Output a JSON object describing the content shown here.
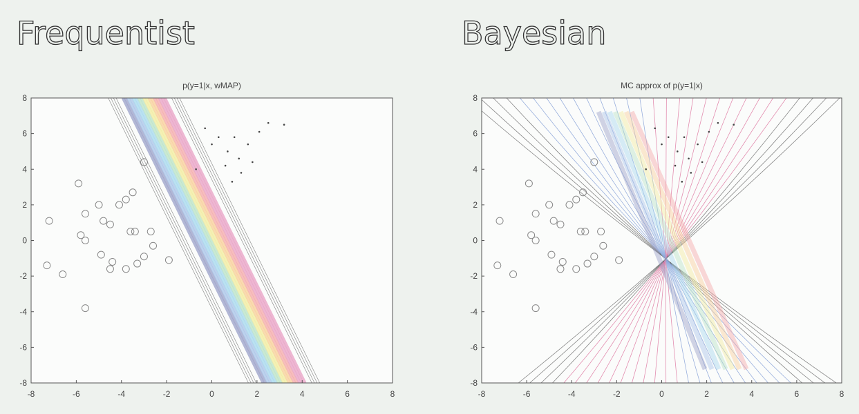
{
  "headings": [
    "Frequentist",
    "Bayesian"
  ],
  "chart_data": [
    {
      "type": "scatter",
      "title": "p(y=1|x, wMAP)",
      "contour": "band",
      "xlim": [
        -8,
        8
      ],
      "ylim": [
        -8,
        8
      ],
      "xticks": [
        -8,
        -6,
        -4,
        -2,
        0,
        2,
        4,
        6,
        8
      ],
      "yticks": [
        -8,
        -6,
        -4,
        -2,
        0,
        2,
        4,
        6,
        8
      ],
      "series": [
        {
          "marker": "circle",
          "color": "#888888",
          "x": [
            -5.9,
            -7.2,
            -5.6,
            -5.8,
            -5.6,
            -5.0,
            -4.8,
            -4.5,
            -4.1,
            -3.8,
            -3.5,
            -3.6,
            -3.4,
            -2.7,
            -3.0,
            -7.3,
            -6.6,
            -4.9,
            -4.5,
            -4.4,
            -3.8,
            -3.3,
            -3.0,
            -2.6,
            -1.9,
            -5.6
          ],
          "y": [
            3.2,
            1.1,
            1.5,
            0.3,
            0.0,
            2.0,
            1.1,
            0.9,
            2.0,
            2.3,
            2.7,
            0.5,
            0.5,
            0.5,
            4.4,
            -1.4,
            -1.9,
            -0.8,
            -1.6,
            -1.2,
            -1.6,
            -1.3,
            -0.9,
            -0.3,
            -1.1,
            -3.8
          ]
        },
        {
          "marker": "dot",
          "color": "#444444",
          "x": [
            -0.3,
            0.3,
            1.0,
            1.6,
            2.1,
            2.5,
            3.2,
            0.7,
            1.2,
            0.6,
            0.9,
            1.8,
            -0.7,
            1.3,
            0.0
          ],
          "y": [
            6.3,
            5.8,
            5.8,
            5.4,
            6.1,
            6.6,
            6.5,
            5.0,
            4.6,
            4.2,
            3.3,
            4.4,
            4.0,
            3.8,
            5.4
          ]
        }
      ]
    },
    {
      "type": "scatter",
      "title": "MC approx of p(y=1|x)",
      "contour": "fan",
      "xlim": [
        -8,
        8
      ],
      "ylim": [
        -8,
        8
      ],
      "xticks": [
        -8,
        -6,
        -4,
        -2,
        0,
        2,
        4,
        6,
        8
      ],
      "yticks": [
        -8,
        -6,
        -4,
        -2,
        0,
        2,
        4,
        6,
        8
      ],
      "series": [
        {
          "marker": "circle",
          "color": "#888888",
          "x": [
            -5.9,
            -7.2,
            -5.6,
            -5.8,
            -5.6,
            -5.0,
            -4.8,
            -4.5,
            -4.1,
            -3.8,
            -3.5,
            -3.6,
            -3.4,
            -2.7,
            -3.0,
            -7.3,
            -6.6,
            -4.9,
            -4.5,
            -4.4,
            -3.8,
            -3.3,
            -3.0,
            -2.6,
            -1.9,
            -5.6
          ],
          "y": [
            3.2,
            1.1,
            1.5,
            0.3,
            0.0,
            2.0,
            1.1,
            0.9,
            2.0,
            2.3,
            2.7,
            0.5,
            0.5,
            0.5,
            4.4,
            -1.4,
            -1.9,
            -0.8,
            -1.6,
            -1.2,
            -1.6,
            -1.3,
            -0.9,
            -0.3,
            -1.1,
            -3.8
          ]
        },
        {
          "marker": "dot",
          "color": "#444444",
          "x": [
            -0.3,
            0.3,
            1.0,
            1.6,
            2.1,
            2.5,
            3.2,
            0.7,
            1.2,
            0.6,
            0.9,
            1.8,
            -0.7,
            1.3,
            0.0
          ],
          "y": [
            6.3,
            5.8,
            5.8,
            5.4,
            6.1,
            6.6,
            6.5,
            5.0,
            4.6,
            4.2,
            3.3,
            4.4,
            4.0,
            3.8,
            5.4
          ]
        }
      ]
    }
  ]
}
